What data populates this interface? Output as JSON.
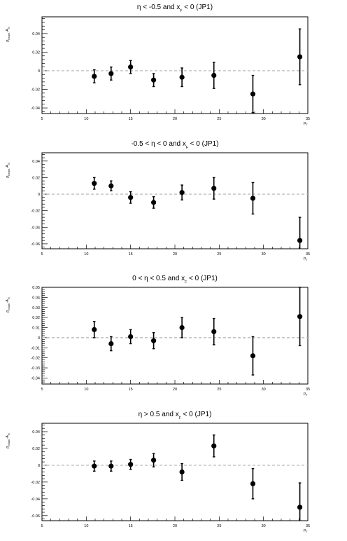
{
  "chart_data": [
    {
      "type": "scatter",
      "title": "η < -0.5 and x_F < 0 (JP1)",
      "title_parts": [
        "η < -0.5 and x",
        "F",
        " < 0 (JP1)"
      ],
      "xlabel": "p_T",
      "xlabel_parts": [
        "p",
        "T"
      ],
      "ylabel": "ρ_beam·A_N",
      "ylabel_parts": [
        "ρ",
        "beam",
        "·A",
        "N"
      ],
      "xlim": [
        5,
        35
      ],
      "ylim": [
        -0.046,
        0.058
      ],
      "xticks": [
        5,
        10,
        15,
        20,
        25,
        30,
        35
      ],
      "xtick_labels": [
        "5",
        "10",
        "15",
        "20",
        "25",
        "30",
        "35"
      ],
      "yticks": [
        -0.04,
        -0.02,
        0,
        0.02,
        0.04
      ],
      "ytick_labels": [
        "-0.04",
        "-0.02",
        "0",
        "0.02",
        "0.04"
      ],
      "reference_line": 0,
      "points": [
        {
          "x": 10.9,
          "y": -0.006,
          "err": 0.007
        },
        {
          "x": 12.8,
          "y": -0.003,
          "err": 0.007
        },
        {
          "x": 15.0,
          "y": 0.004,
          "err": 0.007
        },
        {
          "x": 17.6,
          "y": -0.01,
          "err": 0.007
        },
        {
          "x": 20.8,
          "y": -0.007,
          "err": 0.01
        },
        {
          "x": 24.4,
          "y": -0.005,
          "err": 0.014
        },
        {
          "x": 28.8,
          "y": -0.025,
          "err": 0.02
        },
        {
          "x": 34.1,
          "y": 0.015,
          "err": 0.03
        }
      ]
    },
    {
      "type": "scatter",
      "title": "-0.5 < η < 0 and x_F < 0 (JP1)",
      "title_parts": [
        "-0.5 < η < 0 and x",
        "F",
        " < 0 (JP1)"
      ],
      "xlabel": "p_T",
      "xlabel_parts": [
        "p",
        "T"
      ],
      "ylabel": "ρ_beam·A_N",
      "ylabel_parts": [
        "ρ",
        "beam",
        "·A",
        "N"
      ],
      "xlim": [
        5,
        35
      ],
      "ylim": [
        -0.066,
        0.05
      ],
      "xticks": [
        5,
        10,
        15,
        20,
        25,
        30,
        35
      ],
      "xtick_labels": [
        "5",
        "10",
        "15",
        "20",
        "25",
        "30",
        "35"
      ],
      "yticks": [
        -0.06,
        -0.04,
        -0.02,
        0,
        0.02,
        0.04
      ],
      "ytick_labels": [
        "-0.06",
        "-0.04",
        "-0.02",
        "0",
        "0.02",
        "0.04"
      ],
      "reference_line": 0,
      "points": [
        {
          "x": 10.9,
          "y": 0.013,
          "err": 0.007
        },
        {
          "x": 12.8,
          "y": 0.01,
          "err": 0.006
        },
        {
          "x": 15.0,
          "y": -0.004,
          "err": 0.007
        },
        {
          "x": 17.6,
          "y": -0.01,
          "err": 0.007
        },
        {
          "x": 20.8,
          "y": 0.002,
          "err": 0.009
        },
        {
          "x": 24.4,
          "y": 0.007,
          "err": 0.013
        },
        {
          "x": 28.8,
          "y": -0.005,
          "err": 0.019
        },
        {
          "x": 34.1,
          "y": -0.056,
          "err": 0.028
        }
      ]
    },
    {
      "type": "scatter",
      "title": "0 < η < 0.5 and x_F < 0 (JP1)",
      "title_parts": [
        "0 < η < 0.5 and x",
        "F",
        " < 0 (JP1)"
      ],
      "xlabel": "p_T",
      "xlabel_parts": [
        "p",
        "T"
      ],
      "ylabel": "ρ_beam·A_N",
      "ylabel_parts": [
        "ρ",
        "beam",
        "·A",
        "N"
      ],
      "xlim": [
        5,
        35
      ],
      "ylim": [
        -0.046,
        0.05
      ],
      "xticks": [
        5,
        10,
        15,
        20,
        25,
        30,
        35
      ],
      "xtick_labels": [
        "5",
        "10",
        "15",
        "20",
        "25",
        "30",
        "35"
      ],
      "yticks": [
        -0.04,
        -0.03,
        -0.02,
        -0.01,
        0,
        0.01,
        0.02,
        0.03,
        0.04,
        0.05
      ],
      "ytick_labels": [
        "-0.04",
        "-0.03",
        "-0.02",
        "-0.01",
        "0",
        "0.01",
        "0.02",
        "0.03",
        "0.04",
        "0.05"
      ],
      "reference_line": 0,
      "points": [
        {
          "x": 10.9,
          "y": 0.008,
          "err": 0.008
        },
        {
          "x": 12.8,
          "y": -0.006,
          "err": 0.007
        },
        {
          "x": 15.0,
          "y": 0.001,
          "err": 0.007
        },
        {
          "x": 17.6,
          "y": -0.003,
          "err": 0.008
        },
        {
          "x": 20.8,
          "y": 0.01,
          "err": 0.01
        },
        {
          "x": 24.4,
          "y": 0.006,
          "err": 0.013
        },
        {
          "x": 28.8,
          "y": -0.018,
          "err": 0.019
        },
        {
          "x": 34.1,
          "y": 0.021,
          "err": 0.029
        }
      ]
    },
    {
      "type": "scatter",
      "title": "η > 0.5 and x_F < 0 (JP1)",
      "title_parts": [
        "η > 0.5 and x",
        "F",
        " < 0 (JP1)"
      ],
      "xlabel": "p_T",
      "xlabel_parts": [
        "p",
        "T"
      ],
      "ylabel": "ρ_beam·A_N",
      "ylabel_parts": [
        "ρ",
        "beam",
        "·A",
        "N"
      ],
      "xlim": [
        5,
        35
      ],
      "ylim": [
        -0.066,
        0.05
      ],
      "xticks": [
        5,
        10,
        15,
        20,
        25,
        30,
        35
      ],
      "xtick_labels": [
        "5",
        "10",
        "15",
        "20",
        "25",
        "30",
        "35"
      ],
      "yticks": [
        -0.06,
        -0.04,
        -0.02,
        0,
        0.02,
        0.04
      ],
      "ytick_labels": [
        "-0.06",
        "-0.04",
        "-0.02",
        "0",
        "0.02",
        "0.04"
      ],
      "reference_line": 0,
      "points": [
        {
          "x": 10.9,
          "y": -0.001,
          "err": 0.006
        },
        {
          "x": 12.8,
          "y": -0.001,
          "err": 0.006
        },
        {
          "x": 15.0,
          "y": 0.001,
          "err": 0.006
        },
        {
          "x": 17.6,
          "y": 0.006,
          "err": 0.008
        },
        {
          "x": 20.8,
          "y": -0.008,
          "err": 0.01
        },
        {
          "x": 24.4,
          "y": 0.023,
          "err": 0.013
        },
        {
          "x": 28.8,
          "y": -0.022,
          "err": 0.018
        },
        {
          "x": 34.1,
          "y": -0.05,
          "err": 0.029
        }
      ]
    }
  ]
}
